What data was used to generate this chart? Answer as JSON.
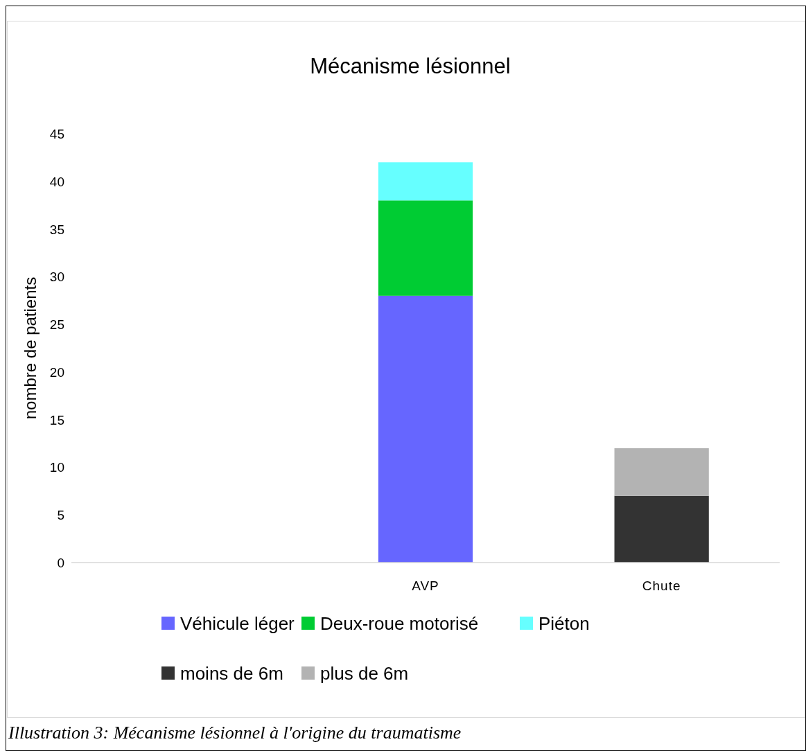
{
  "chart_data": {
    "type": "bar",
    "title": "Mécanisme lésionnel",
    "ylabel": "nombre de patients",
    "categories": [
      null,
      "AVP",
      "Chute"
    ],
    "stacked": true,
    "series": [
      {
        "name": "Véhicule léger",
        "color": "#6666ff",
        "values": [
          null,
          28,
          null
        ]
      },
      {
        "name": "Deux-roue motorisé",
        "color": "#00cc33",
        "values": [
          null,
          10,
          null
        ]
      },
      {
        "name": "Piéton",
        "color": "#66ffff",
        "values": [
          null,
          4,
          null
        ]
      },
      {
        "name": "moins de 6m",
        "color": "#333333",
        "values": [
          null,
          null,
          7
        ]
      },
      {
        "name": "plus de 6m",
        "color": "#b3b3b3",
        "values": [
          null,
          null,
          5
        ]
      }
    ],
    "ylim": [
      0,
      45
    ],
    "yticks": [
      0,
      5,
      10,
      15,
      20,
      25,
      30,
      35,
      40,
      45
    ],
    "grid": false,
    "legend": "bottom",
    "annotations": [
      "Illustration 3: Mécanisme lésionnel à l'origine du traumatisme"
    ]
  }
}
